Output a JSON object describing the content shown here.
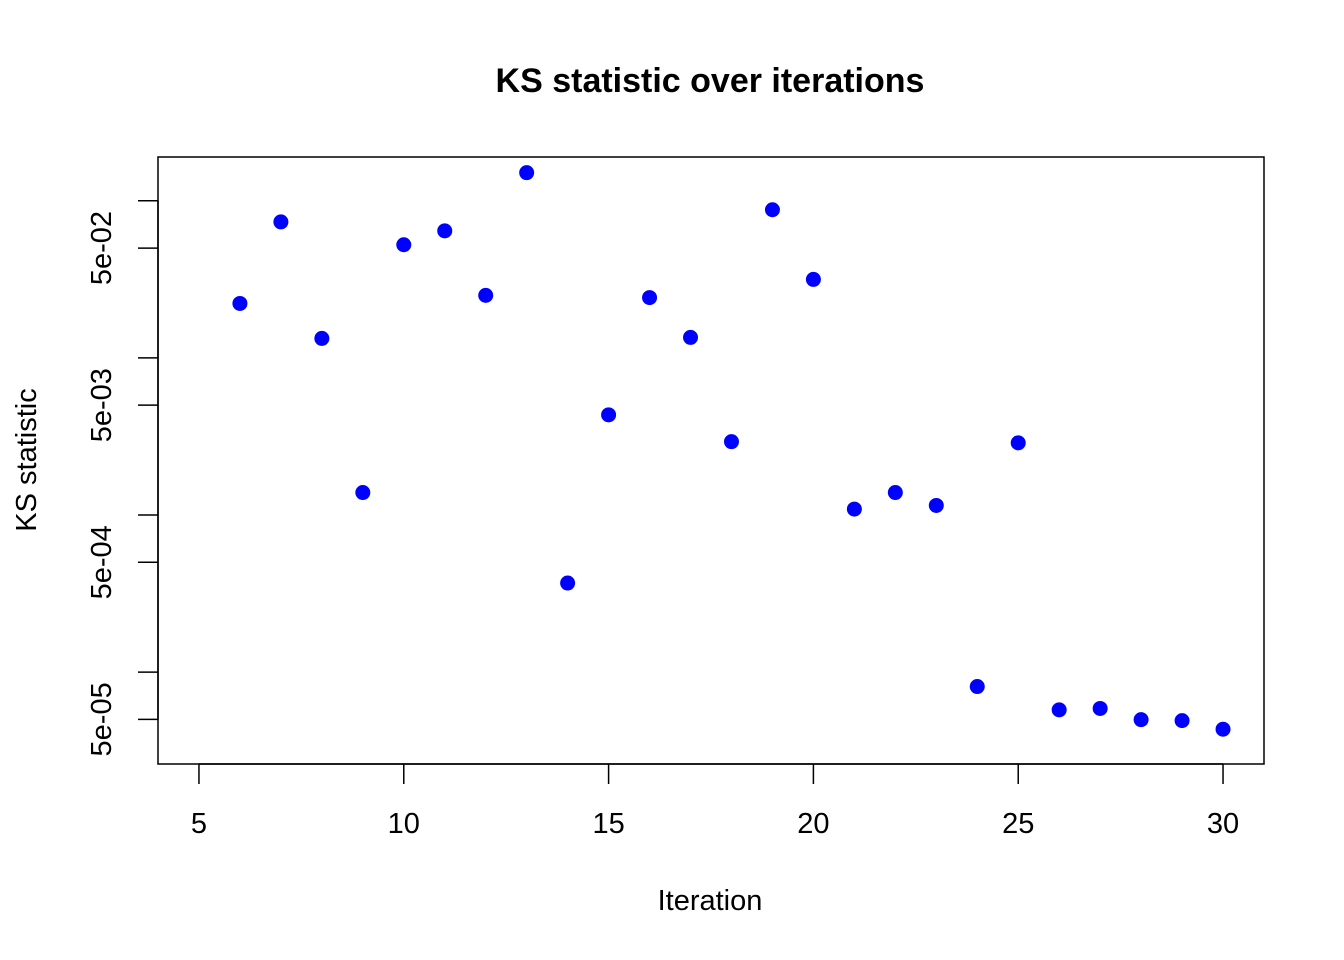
{
  "chart_data": {
    "type": "scatter",
    "title": "KS statistic over iterations",
    "xlabel": "Iteration",
    "ylabel": "KS statistic",
    "xlim": [
      4,
      31
    ],
    "ylim": [
      2.6e-05,
      0.19
    ],
    "y_scale": "log",
    "x_ticks": [
      5,
      10,
      15,
      20,
      25,
      30
    ],
    "x_tick_labels": [
      "5",
      "10",
      "15",
      "20",
      "25",
      "30"
    ],
    "y_ticks": [
      5e-05,
      0.0005,
      0.005,
      0.05
    ],
    "y_tick_labels": [
      "5e-05",
      "5e-04",
      "5e-03",
      "5e-02"
    ],
    "y_minor_ticks": [
      0.0001,
      0.001,
      0.01,
      0.1
    ],
    "grid": false,
    "point_color": "#0000ff",
    "series": [
      {
        "x": [
          6,
          7,
          8,
          9,
          10,
          11,
          12,
          13,
          14,
          15,
          16,
          17,
          18,
          19,
          20,
          21,
          22,
          23,
          24,
          25,
          26,
          27,
          28,
          29,
          30
        ],
        "y": [
          0.0222,
          0.0734,
          0.0133,
          0.00139,
          0.0525,
          0.0644,
          0.025,
          0.151,
          0.000369,
          0.00434,
          0.0242,
          0.0135,
          0.00293,
          0.0877,
          0.0316,
          0.00109,
          0.00139,
          0.00115,
          8.09e-05,
          0.00288,
          5.75e-05,
          5.87e-05,
          4.98e-05,
          4.91e-05,
          4.33e-05
        ]
      }
    ]
  }
}
